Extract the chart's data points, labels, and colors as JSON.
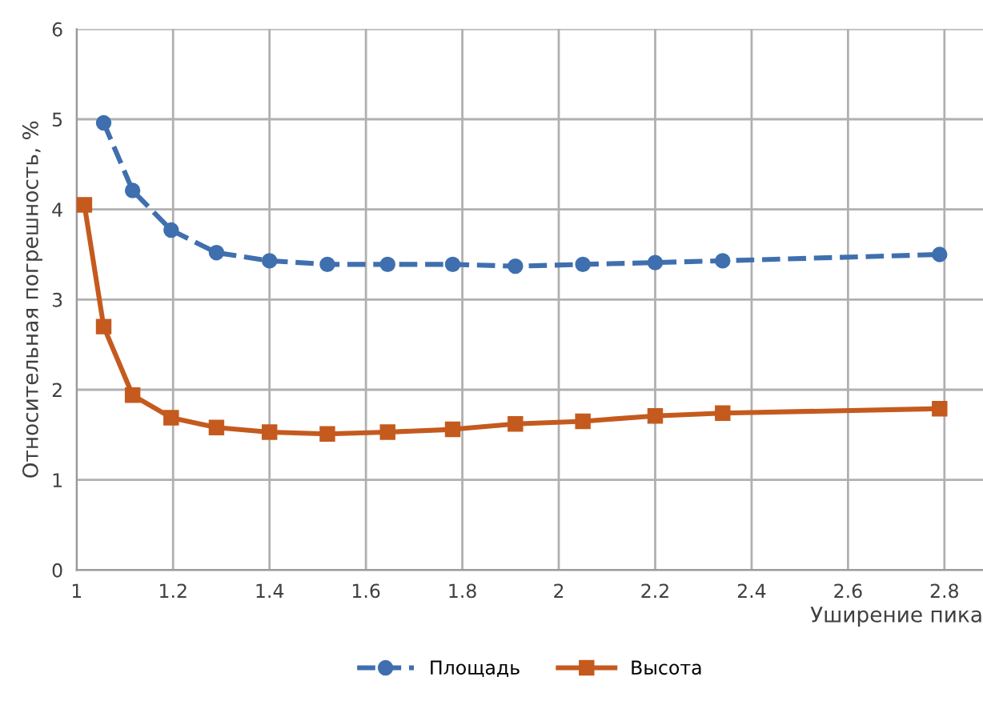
{
  "chart_data": {
    "type": "line",
    "xlabel": "Уширение пика",
    "ylabel": "Относительная погрешность, %",
    "xlim": [
      1,
      2.88
    ],
    "xticks": [
      1,
      1.2,
      1.4,
      1.6,
      1.8,
      2,
      2.2,
      2.4,
      2.6,
      2.8
    ],
    "ylim": [
      0,
      6
    ],
    "yticks": [
      0,
      1,
      2,
      3,
      4,
      5,
      6
    ],
    "grid": true,
    "legend": "bottom",
    "series": [
      {
        "name": "Площадь",
        "color": "#3f6fae",
        "marker": "circle",
        "line_style": "dashed",
        "x": [
          1.056,
          1.116,
          1.196,
          1.29,
          1.4,
          1.52,
          1.645,
          1.78,
          1.91,
          2.05,
          2.2,
          2.34,
          2.79
        ],
        "values": [
          4.96,
          4.21,
          3.77,
          3.52,
          3.43,
          3.39,
          3.39,
          3.39,
          3.37,
          3.39,
          3.41,
          3.43,
          3.5
        ]
      },
      {
        "name": "Высота",
        "color": "#c55a1e",
        "marker": "square",
        "line_style": "solid",
        "x": [
          1.016,
          1.056,
          1.116,
          1.196,
          1.29,
          1.4,
          1.52,
          1.645,
          1.78,
          1.91,
          2.05,
          2.2,
          2.34,
          2.79
        ],
        "values": [
          4.05,
          2.7,
          1.94,
          1.69,
          1.58,
          1.53,
          1.51,
          1.53,
          1.56,
          1.62,
          1.65,
          1.71,
          1.74,
          1.79
        ]
      }
    ]
  }
}
